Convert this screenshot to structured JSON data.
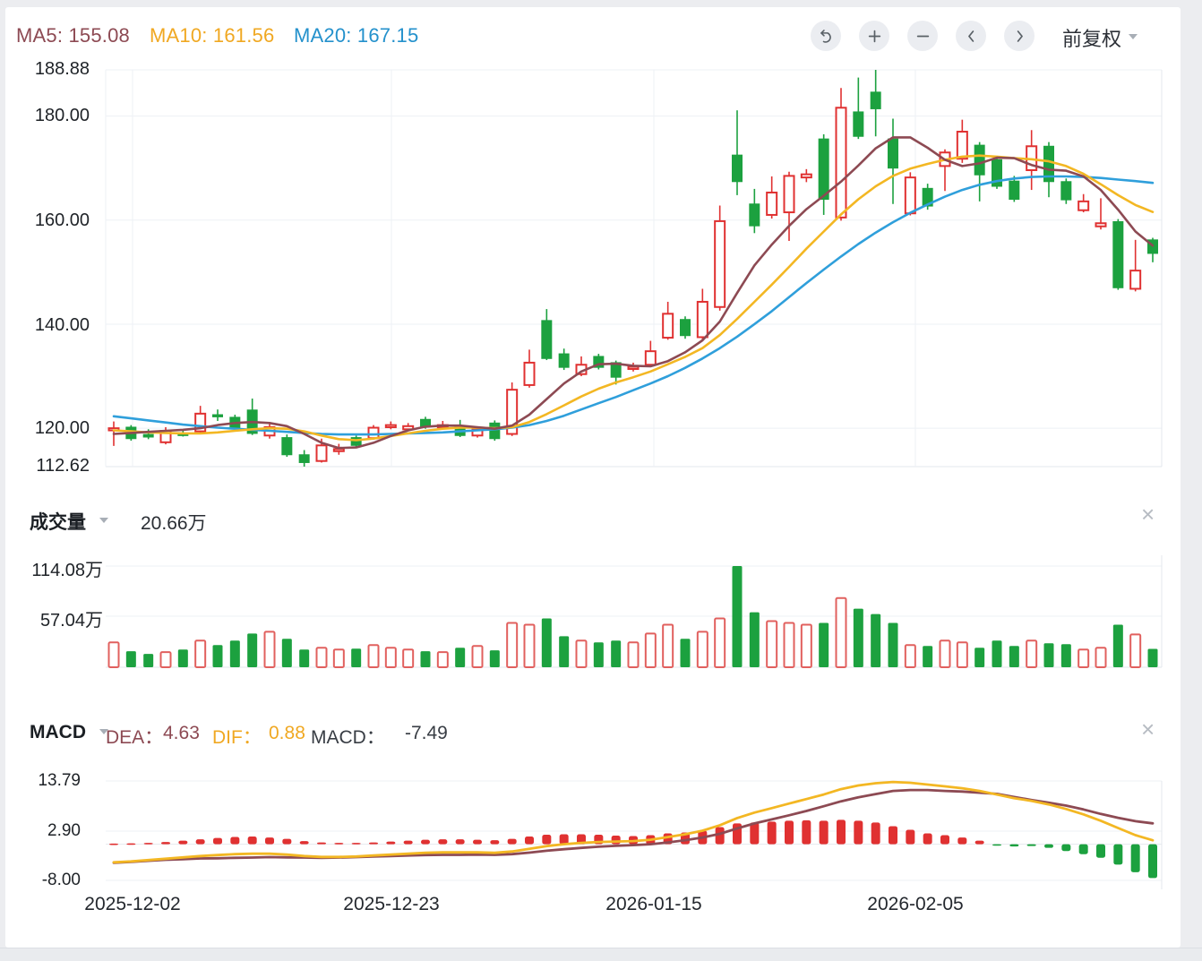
{
  "icons": {
    "close": "×"
  },
  "header": {
    "ma5": "MA5: 155.08",
    "ma10": "MA10: 161.56",
    "ma20": "MA20: 167.15",
    "adjust_mode": "前复权",
    "toolbar_icons": [
      "undo-icon",
      "zoom-in-icon",
      "zoom-out-icon",
      "chevron-left-icon",
      "chevron-right-icon"
    ]
  },
  "main_chart": {
    "y_tick_labels": [
      "188.88",
      "180.00",
      "160.00",
      "140.00",
      "120.00",
      "112.62"
    ]
  },
  "volume_pane": {
    "title": "成交量",
    "value": "20.66万",
    "y_tick_labels": [
      "114.08万",
      "57.04万"
    ]
  },
  "macd_pane": {
    "title": "MACD",
    "dea_label": "DEA：",
    "dea_value": "4.63",
    "dif_label": "DIF：",
    "dif_value": "0.88",
    "macd_label": "MACD：",
    "macd_value": "-7.49",
    "y_tick_labels": [
      "13.79",
      "2.90",
      "-8.00"
    ]
  },
  "x_axis_labels": [
    "2025-12-02",
    "2025-12-23",
    "2026-01-15",
    "2026-02-05"
  ],
  "colors": {
    "up": "#e03131",
    "down": "#1ca13f",
    "vol_up_stroke": "#e1605e",
    "ma5": "#8d4a53",
    "ma10": "#f3b723",
    "ma20": "#2f9fdb",
    "dif": "#f3b723",
    "dea": "#8d4a53",
    "grid": "#eef1f5",
    "grid_strong": "#e3e7ec",
    "zero_line": "#e6e9ee"
  },
  "chart_data": [
    {
      "type": "candlestick",
      "title": "日K (前复权)",
      "ylim": [
        112.62,
        188.88
      ],
      "y_ticks": [
        188.88,
        180.0,
        160.0,
        140.0,
        120.0,
        112.62
      ],
      "x_labels": [
        "2025-12-02",
        "2025-12-23",
        "2026-01-15",
        "2026-02-05"
      ],
      "ma5_current": 155.08,
      "ma10_current": 161.56,
      "ma20_current": 167.15,
      "candles": [
        [
          119.6,
          121.3,
          116.6,
          120.0
        ],
        [
          120.2,
          120.6,
          117.6,
          118.0
        ],
        [
          118.8,
          119.8,
          117.9,
          118.3
        ],
        [
          117.3,
          120.2,
          116.9,
          119.5
        ],
        [
          119.0,
          119.6,
          118.4,
          118.8
        ],
        [
          119.4,
          124.3,
          119.0,
          122.8
        ],
        [
          122.6,
          123.6,
          121.4,
          122.4
        ],
        [
          122.1,
          122.6,
          119.6,
          120.0
        ],
        [
          123.5,
          125.7,
          118.7,
          119.0
        ],
        [
          118.6,
          121.2,
          118.0,
          120.2
        ],
        [
          118.2,
          118.8,
          114.5,
          114.9
        ],
        [
          114.9,
          115.8,
          112.62,
          113.4
        ],
        [
          113.7,
          118.0,
          113.4,
          116.7
        ],
        [
          115.8,
          117.0,
          114.9,
          116.0
        ],
        [
          118.2,
          118.6,
          116.3,
          116.7
        ],
        [
          118.1,
          120.6,
          117.8,
          120.1
        ],
        [
          120.4,
          121.3,
          119.8,
          120.6
        ],
        [
          119.8,
          121.0,
          119.4,
          120.4
        ],
        [
          121.7,
          122.2,
          119.9,
          120.3
        ],
        [
          120.5,
          121.4,
          119.9,
          120.6
        ],
        [
          120.5,
          121.6,
          118.3,
          118.6
        ],
        [
          118.6,
          120.3,
          118.2,
          119.8
        ],
        [
          121.0,
          121.5,
          117.6,
          118.0
        ],
        [
          118.9,
          128.8,
          118.5,
          127.4
        ],
        [
          128.3,
          135.1,
          127.8,
          132.6
        ],
        [
          140.7,
          142.9,
          133.1,
          133.4
        ],
        [
          134.3,
          135.3,
          131.2,
          131.7
        ],
        [
          130.4,
          133.8,
          130.0,
          132.2
        ],
        [
          133.8,
          134.3,
          131.3,
          131.7
        ],
        [
          132.6,
          133.0,
          128.4,
          129.8
        ],
        [
          131.5,
          132.6,
          130.9,
          131.8
        ],
        [
          132.2,
          136.8,
          131.8,
          134.8
        ],
        [
          137.4,
          144.3,
          137.0,
          142.0
        ],
        [
          140.9,
          141.5,
          137.2,
          137.8
        ],
        [
          137.5,
          146.8,
          137.0,
          144.3
        ],
        [
          143.3,
          162.8,
          142.6,
          159.8
        ],
        [
          172.5,
          181.1,
          164.8,
          167.4
        ],
        [
          163.1,
          166.0,
          157.5,
          158.9
        ],
        [
          161.0,
          168.4,
          160.3,
          165.3
        ],
        [
          161.5,
          169.3,
          156.0,
          168.5
        ],
        [
          168.2,
          169.8,
          167.3,
          168.8
        ],
        [
          175.6,
          176.5,
          161.0,
          164.0
        ],
        [
          160.5,
          185.4,
          159.9,
          181.6
        ],
        [
          180.8,
          187.4,
          175.6,
          176.1
        ],
        [
          184.6,
          188.88,
          176.1,
          181.4
        ],
        [
          175.6,
          179.5,
          163.1,
          170.0
        ],
        [
          161.3,
          169.2,
          160.9,
          168.2
        ],
        [
          166.1,
          167.0,
          162.0,
          162.7
        ],
        [
          170.4,
          173.6,
          165.6,
          173.0
        ],
        [
          171.8,
          179.3,
          171.0,
          177.0
        ],
        [
          174.4,
          175.0,
          163.6,
          168.7
        ],
        [
          171.6,
          172.2,
          166.0,
          166.5
        ],
        [
          167.5,
          168.5,
          163.5,
          164.0
        ],
        [
          169.6,
          177.3,
          165.8,
          174.2
        ],
        [
          174.2,
          175.0,
          164.4,
          167.4
        ],
        [
          167.4,
          168.0,
          163.1,
          163.9
        ],
        [
          161.9,
          165.0,
          161.5,
          163.6
        ],
        [
          158.8,
          164.2,
          158.2,
          159.4
        ],
        [
          159.7,
          160.2,
          146.6,
          147.0
        ],
        [
          146.8,
          156.2,
          146.3,
          150.3
        ],
        [
          156.2,
          156.6,
          151.9,
          153.6
        ]
      ],
      "ma5": [
        118.9,
        119.1,
        119.3,
        119.5,
        119.7,
        120.0,
        120.6,
        121.0,
        121.2,
        121.0,
        120.4,
        118.9,
        117.2,
        116.2,
        116.3,
        117.2,
        118.5,
        119.6,
        120.3,
        120.5,
        120.5,
        120.2,
        119.9,
        120.5,
        122.6,
        125.6,
        128.6,
        130.9,
        132.3,
        132.4,
        132.0,
        131.9,
        132.9,
        134.6,
        136.9,
        140.5,
        146.0,
        151.3,
        155.3,
        158.9,
        162.1,
        164.7,
        167.4,
        170.5,
        173.8,
        175.9,
        175.9,
        173.9,
        171.6,
        170.4,
        170.9,
        172.0,
        171.9,
        170.6,
        169.7,
        169.5,
        168.4,
        165.8,
        162.0,
        157.8,
        155.08
      ],
      "ma10": [
        119.6,
        119.4,
        119.2,
        119.1,
        119.0,
        119.0,
        119.2,
        119.5,
        119.8,
        120.0,
        119.9,
        119.4,
        118.6,
        117.9,
        117.7,
        118.0,
        118.5,
        119.0,
        119.5,
        119.9,
        120.1,
        120.1,
        120.0,
        120.2,
        121.2,
        122.7,
        124.4,
        126.1,
        127.6,
        128.8,
        129.8,
        130.9,
        132.3,
        133.7,
        135.4,
        137.9,
        141.0,
        144.3,
        147.6,
        151.0,
        154.5,
        157.8,
        161.1,
        164.0,
        166.5,
        168.5,
        169.9,
        170.8,
        171.6,
        172.2,
        172.4,
        172.2,
        171.9,
        171.7,
        171.3,
        170.4,
        168.9,
        166.9,
        164.8,
        162.9,
        161.56
      ],
      "ma20": [
        122.3,
        121.9,
        121.5,
        121.1,
        120.7,
        120.4,
        120.1,
        119.9,
        119.7,
        119.5,
        119.3,
        119.1,
        118.9,
        118.8,
        118.8,
        118.8,
        118.9,
        119.0,
        119.1,
        119.2,
        119.4,
        119.6,
        119.8,
        120.1,
        120.6,
        121.4,
        122.4,
        123.6,
        124.8,
        126.0,
        127.3,
        128.6,
        130.0,
        131.6,
        133.4,
        135.4,
        137.6,
        140.0,
        142.5,
        145.2,
        147.9,
        150.5,
        153.0,
        155.4,
        157.6,
        159.6,
        161.4,
        163.0,
        164.5,
        165.8,
        166.8,
        167.5,
        168.0,
        168.3,
        168.4,
        168.4,
        168.3,
        168.1,
        167.8,
        167.5,
        167.15
      ]
    },
    {
      "type": "bar",
      "title": "成交量",
      "unit": "万",
      "current": 20.66,
      "y_ticks": [
        114.08,
        57.04
      ],
      "values": [
        28,
        18,
        15,
        17,
        20,
        30,
        25,
        30,
        38,
        40,
        32,
        20,
        22,
        20,
        21,
        25,
        22,
        20,
        18,
        17,
        22,
        24,
        19,
        50,
        48,
        55,
        35,
        30,
        28,
        30,
        28,
        38,
        48,
        32,
        40,
        55,
        114.08,
        62,
        52,
        50,
        48,
        50,
        78,
        66,
        60,
        50,
        25,
        24,
        30,
        28,
        22,
        30,
        24,
        30,
        27,
        26,
        20,
        22,
        48,
        37,
        20.66
      ]
    },
    {
      "type": "macd",
      "y_ticks": [
        13.79,
        2.9,
        -8.0
      ],
      "dif_current": 0.88,
      "dea_current": 4.63,
      "macd_current": -7.49,
      "histogram": [
        0.15,
        0.2,
        0.3,
        0.5,
        0.8,
        1.1,
        1.4,
        1.6,
        1.7,
        1.5,
        1.2,
        0.7,
        0.4,
        0.3,
        0.3,
        0.4,
        0.6,
        0.8,
        1.0,
        1.1,
        1.1,
        1.0,
        0.9,
        1.2,
        1.7,
        2.1,
        2.2,
        2.2,
        2.1,
        1.9,
        1.8,
        2.0,
        2.4,
        2.6,
        3.0,
        3.8,
        4.6,
        4.8,
        5.0,
        5.2,
        5.3,
        5.2,
        5.4,
        5.2,
        4.8,
        4.0,
        3.2,
        2.4,
        2.0,
        1.5,
        0.8,
        -0.3,
        -0.5,
        -0.4,
        -0.8,
        -1.5,
        -2.2,
        -3.0,
        -4.5,
        -6.2,
        -7.49
      ],
      "dif": [
        -4.0,
        -3.8,
        -3.5,
        -3.2,
        -2.9,
        -2.6,
        -2.4,
        -2.2,
        -2.1,
        -2.1,
        -2.3,
        -2.6,
        -2.8,
        -2.8,
        -2.7,
        -2.5,
        -2.3,
        -2.1,
        -1.9,
        -1.8,
        -1.8,
        -1.8,
        -1.9,
        -1.6,
        -1.0,
        -0.4,
        0.0,
        0.3,
        0.5,
        0.6,
        0.7,
        1.0,
        1.6,
        2.2,
        3.0,
        4.2,
        5.8,
        7.0,
        8.0,
        9.0,
        10.0,
        11.0,
        12.2,
        13.0,
        13.5,
        13.79,
        13.6,
        13.2,
        12.8,
        12.4,
        11.8,
        11.0,
        10.2,
        9.6,
        8.8,
        7.8,
        6.6,
        5.2,
        3.6,
        2.0,
        0.88
      ],
      "dea": [
        -4.1,
        -3.9,
        -3.65,
        -3.45,
        -3.3,
        -3.15,
        -3.1,
        -3.0,
        -2.95,
        -2.85,
        -2.9,
        -2.95,
        -3.0,
        -2.95,
        -2.85,
        -2.7,
        -2.6,
        -2.5,
        -2.4,
        -2.35,
        -2.35,
        -2.3,
        -2.35,
        -2.2,
        -1.85,
        -1.45,
        -1.1,
        -0.8,
        -0.55,
        -0.35,
        -0.2,
        0.0,
        0.4,
        0.9,
        1.5,
        2.3,
        3.5,
        4.6,
        5.5,
        6.4,
        7.35,
        8.4,
        9.5,
        10.4,
        11.1,
        11.79,
        12.0,
        12.0,
        11.8,
        11.65,
        11.4,
        11.15,
        10.45,
        9.8,
        9.2,
        8.55,
        7.7,
        6.7,
        5.85,
        5.1,
        4.63
      ]
    }
  ]
}
